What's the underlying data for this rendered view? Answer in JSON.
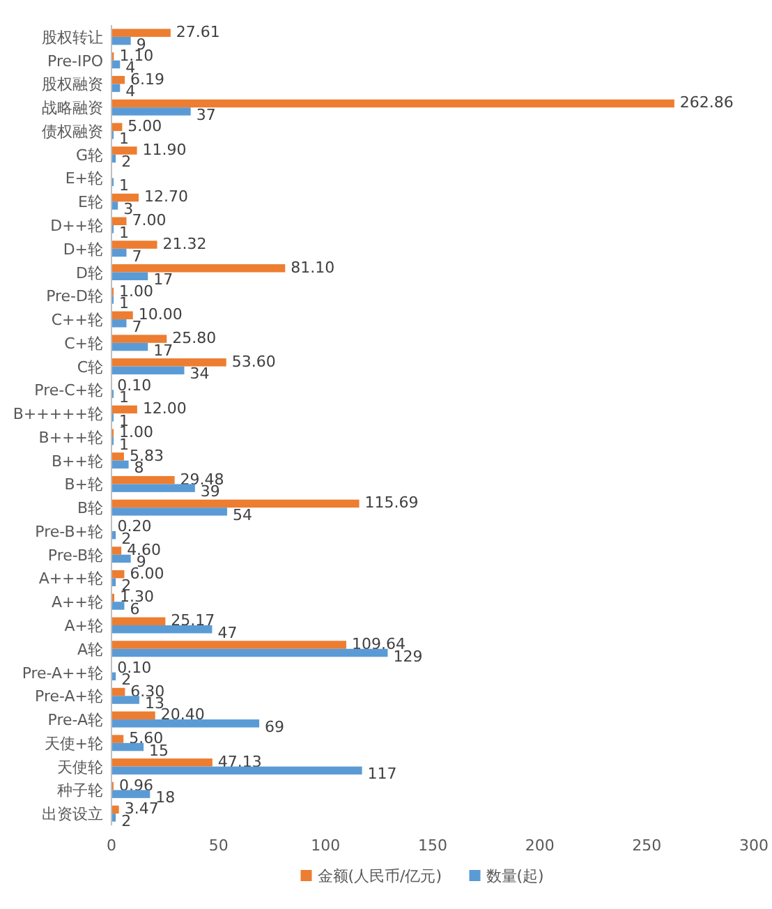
{
  "chart_data": {
    "type": "bar",
    "orientation": "horizontal",
    "categories": [
      "股权转让",
      "Pre-IPO",
      "股权融资",
      "战略融资",
      "债权融资",
      "G轮",
      "E+轮",
      "E轮",
      "D++轮",
      "D+轮",
      "D轮",
      "Pre-D轮",
      "C++轮",
      "C+轮",
      "C轮",
      "Pre-C+轮",
      "B+++++轮",
      "B+++轮",
      "B++轮",
      "B+轮",
      "B轮",
      "Pre-B+轮",
      "Pre-B轮",
      "A+++轮",
      "A++轮",
      "A+轮",
      "A轮",
      "Pre-A++轮",
      "Pre-A+轮",
      "Pre-A轮",
      "天使+轮",
      "天使轮",
      "种子轮",
      "出资设立"
    ],
    "series": [
      {
        "name": "金额(人民币/亿元)",
        "color": "#ed7d31",
        "values": [
          27.61,
          1.1,
          6.19,
          262.86,
          5.0,
          11.9,
          null,
          12.7,
          7.0,
          21.32,
          81.1,
          1.0,
          10.0,
          25.8,
          53.6,
          0.1,
          12.0,
          1.0,
          5.83,
          29.48,
          115.69,
          0.2,
          4.6,
          6.0,
          1.3,
          25.17,
          109.64,
          0.1,
          6.3,
          20.4,
          5.6,
          47.13,
          0.96,
          3.47
        ],
        "value_labels": [
          "27.61",
          "1.10",
          "6.19",
          "262.86",
          "5.00",
          "11.90",
          null,
          "12.70",
          "7.00",
          "21.32",
          "81.10",
          "1.00",
          "10.00",
          "25.80",
          "53.60",
          "0.10",
          "12.00",
          "1.00",
          "5.83",
          "29.48",
          "115.69",
          "0.20",
          "4.60",
          "6.00",
          "1.30",
          "25.17",
          "109.64",
          "0.10",
          "6.30",
          "20.40",
          "5.60",
          "47.13",
          "0.96",
          "3.47"
        ]
      },
      {
        "name": "数量(起)",
        "color": "#5b9bd5",
        "values": [
          9,
          4,
          4,
          37,
          1,
          2,
          1,
          3,
          1,
          7,
          17,
          1,
          7,
          17,
          34,
          1,
          1,
          1,
          8,
          39,
          54,
          2,
          9,
          2,
          6,
          47,
          129,
          2,
          13,
          69,
          15,
          117,
          18,
          2
        ],
        "value_labels": [
          "9",
          "4",
          "4",
          "37",
          "1",
          "2",
          "1",
          "3",
          "1",
          "7",
          "17",
          "1",
          "7",
          "17",
          "34",
          "1",
          "1",
          "1",
          "8",
          "39",
          "54",
          "2",
          "9",
          "2",
          "6",
          "47",
          "129",
          "2",
          "13",
          "69",
          "15",
          "117",
          "18",
          "2"
        ]
      }
    ],
    "xlim": [
      0,
      300
    ],
    "xticks": [
      0,
      50,
      100,
      150,
      200,
      250,
      300
    ],
    "grid": false,
    "legend": "bottom"
  }
}
